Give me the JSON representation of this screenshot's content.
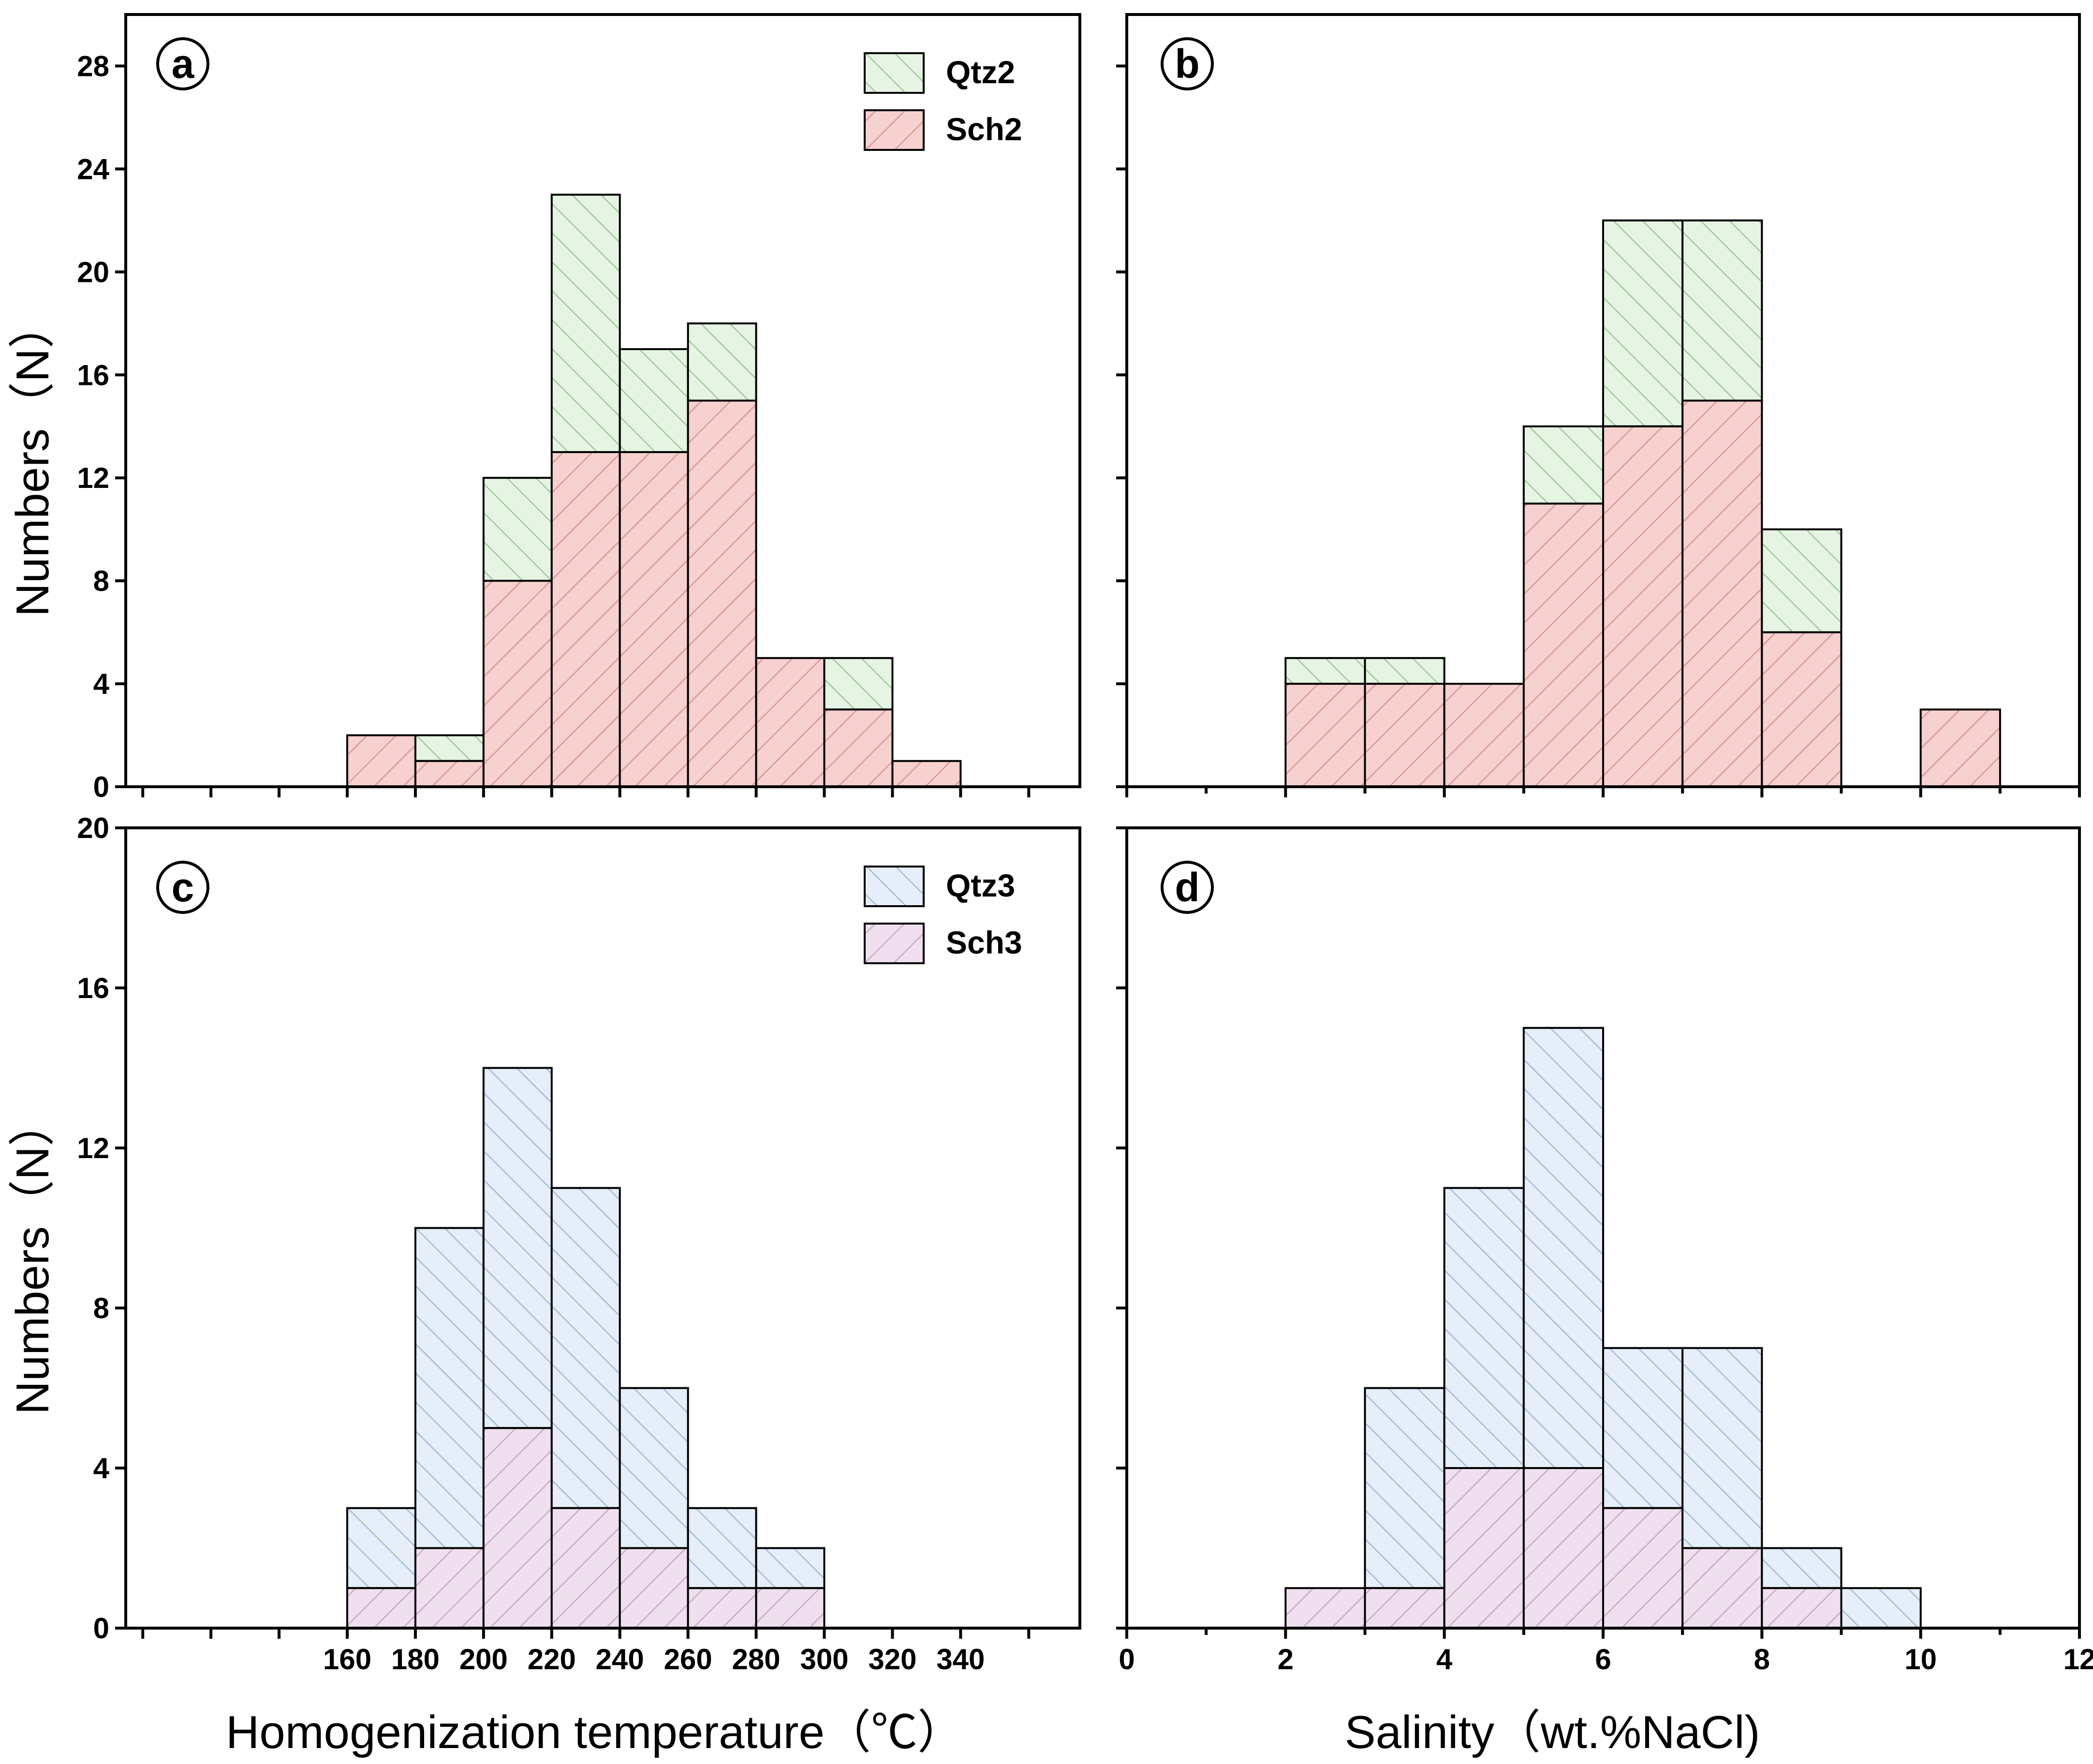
{
  "colors": {
    "Qtz2": "#e6f5e3",
    "Sch2": "#f7d0d0",
    "Qtz3": "#e5eef9",
    "Sch3": "#f0e0ef",
    "hatch_Qtz2": "#9fc79a",
    "hatch_Sch2": "#d79797",
    "hatch_Qtz3": "#a7b9d2",
    "hatch_Sch3": "#c8a8c6"
  },
  "x_axis_titles": {
    "left": "Homogenization temperature（℃）",
    "right": "Salinity（wt.%NaCl)"
  },
  "y_axis_title": "Numbers（N）",
  "chart_data": [
    {
      "panel": "a",
      "type": "bar",
      "stacked": true,
      "title": "",
      "xlabel": "",
      "ylabel": "Numbers（N）",
      "xlim": [
        95,
        375
      ],
      "ylim": [
        0,
        30
      ],
      "y_ticks": [
        0,
        4,
        8,
        12,
        16,
        20,
        24,
        28
      ],
      "x_ticks": [
        100,
        120,
        140,
        160,
        180,
        200,
        220,
        240,
        260,
        280,
        300,
        320,
        340,
        360
      ],
      "x_tick_labels": [],
      "legend_position": "top-right",
      "bins": [
        [
          160,
          180
        ],
        [
          180,
          200
        ],
        [
          200,
          220
        ],
        [
          220,
          240
        ],
        [
          240,
          260
        ],
        [
          260,
          280
        ],
        [
          280,
          300
        ],
        [
          300,
          320
        ],
        [
          320,
          340
        ]
      ],
      "series": [
        {
          "name": "Sch2",
          "values": [
            2,
            1,
            8,
            13,
            13,
            15,
            5,
            3,
            1
          ]
        },
        {
          "name": "Qtz2",
          "values": [
            0,
            1,
            4,
            10,
            4,
            3,
            0,
            2,
            0
          ]
        }
      ],
      "legend": [
        "Qtz2",
        "Sch2"
      ]
    },
    {
      "panel": "b",
      "type": "bar",
      "stacked": true,
      "title": "",
      "xlabel": "",
      "ylabel": "",
      "xlim": [
        0,
        12
      ],
      "ylim": [
        0,
        30
      ],
      "y_ticks": [
        0,
        4,
        8,
        12,
        16,
        20,
        24,
        28
      ],
      "x_ticks": [
        0,
        1,
        2,
        3,
        4,
        5,
        6,
        7,
        8,
        9,
        10,
        11,
        12
      ],
      "x_tick_labels": [],
      "bins": [
        [
          2,
          3
        ],
        [
          3,
          4
        ],
        [
          4,
          5
        ],
        [
          5,
          6
        ],
        [
          6,
          7
        ],
        [
          7,
          8
        ],
        [
          8,
          9
        ],
        [
          10,
          11
        ]
      ],
      "series": [
        {
          "name": "Sch2",
          "values": [
            4,
            4,
            4,
            11,
            14,
            15,
            6,
            3
          ]
        },
        {
          "name": "Qtz2",
          "values": [
            1,
            1,
            0,
            3,
            8,
            7,
            4,
            0
          ]
        }
      ]
    },
    {
      "panel": "c",
      "type": "bar",
      "stacked": true,
      "title": "",
      "xlabel": "Homogenization temperature（℃）",
      "ylabel": "Numbers（N）",
      "xlim": [
        95,
        375
      ],
      "ylim": [
        0,
        20
      ],
      "y_ticks": [
        0,
        4,
        8,
        12,
        16,
        20
      ],
      "x_ticks": [
        100,
        120,
        140,
        160,
        180,
        200,
        220,
        240,
        260,
        280,
        300,
        320,
        340,
        360
      ],
      "x_tick_labels": [
        "160",
        "180",
        "200",
        "220",
        "240",
        "260",
        "280",
        "300",
        "320",
        "340"
      ],
      "legend_position": "top-right",
      "bins": [
        [
          160,
          180
        ],
        [
          180,
          200
        ],
        [
          200,
          220
        ],
        [
          220,
          240
        ],
        [
          240,
          260
        ],
        [
          260,
          280
        ],
        [
          280,
          300
        ]
      ],
      "series": [
        {
          "name": "Sch3",
          "values": [
            1,
            2,
            5,
            3,
            2,
            1,
            1
          ]
        },
        {
          "name": "Qtz3",
          "values": [
            2,
            8,
            9,
            8,
            4,
            2,
            1
          ]
        }
      ],
      "legend": [
        "Qtz3",
        "Sch3"
      ]
    },
    {
      "panel": "d",
      "type": "bar",
      "stacked": true,
      "title": "",
      "xlabel": "Salinity（wt.%NaCl)",
      "ylabel": "",
      "xlim": [
        0,
        12
      ],
      "ylim": [
        0,
        20
      ],
      "y_ticks": [
        0,
        4,
        8,
        12,
        16,
        20
      ],
      "x_ticks": [
        0,
        1,
        2,
        3,
        4,
        5,
        6,
        7,
        8,
        9,
        10,
        11,
        12
      ],
      "x_tick_labels": [
        "0",
        "",
        "2",
        "",
        "4",
        "",
        "6",
        "",
        "8",
        "",
        "10",
        "",
        "12"
      ],
      "bins": [
        [
          2,
          3
        ],
        [
          3,
          4
        ],
        [
          4,
          5
        ],
        [
          5,
          6
        ],
        [
          6,
          7
        ],
        [
          7,
          8
        ],
        [
          8,
          9
        ],
        [
          9,
          10
        ]
      ],
      "series": [
        {
          "name": "Sch3",
          "values": [
            1,
            1,
            4,
            4,
            3,
            2,
            1,
            0
          ]
        },
        {
          "name": "Qtz3",
          "values": [
            0,
            5,
            7,
            11,
            4,
            5,
            1,
            1
          ]
        }
      ]
    }
  ]
}
